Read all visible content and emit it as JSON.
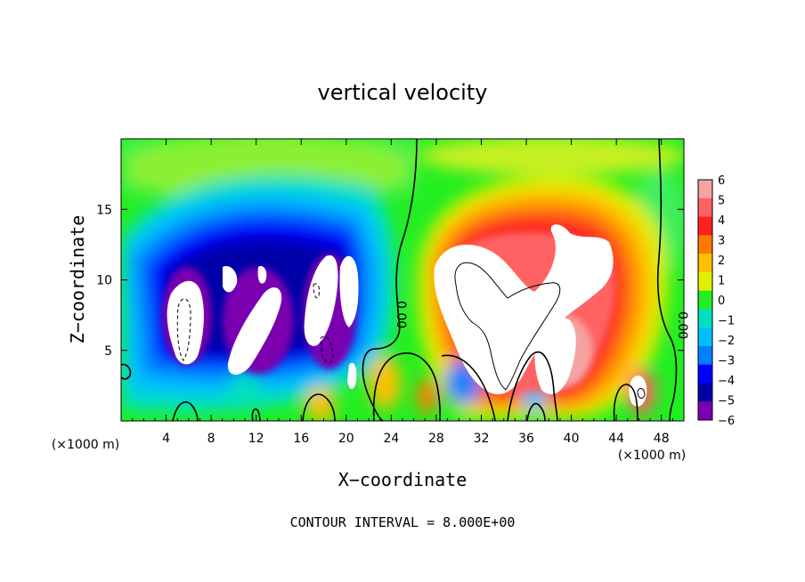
{
  "chart_data": {
    "type": "heatmap",
    "title": "vertical velocity",
    "xlabel": "X−coordinate",
    "ylabel": "Z−coordinate",
    "x_unit_left": "(×1000 m)",
    "x_unit_right": "(×1000 m)",
    "xlim": [
      0,
      50
    ],
    "ylim": [
      0,
      20
    ],
    "x_ticks": [
      4,
      8,
      12,
      16,
      20,
      24,
      28,
      32,
      36,
      40,
      44,
      48
    ],
    "y_ticks": [
      5,
      10,
      15
    ],
    "colorbar": {
      "range": [
        -6,
        6
      ],
      "labels": [
        "6",
        "5",
        "4",
        "3",
        "2",
        "1",
        "0",
        "−1",
        "−2",
        "−3",
        "−4",
        "−5",
        "−6"
      ],
      "colors": [
        "#f5a3a3",
        "#ff6262",
        "#ff2020",
        "#ff7a00",
        "#ffc000",
        "#e0f000",
        "#22ee22",
        "#00e0c0",
        "#00bfff",
        "#0080ff",
        "#0000ff",
        "#0000a8",
        "#7a00b0"
      ]
    },
    "contour_labels": [
      "0.00",
      "0.00"
    ],
    "contour_interval": "CONTOUR INTERVAL = 8.000E+00",
    "updraft_regions": [
      {
        "x_center": 37,
        "z_center": 9,
        "w_max": 6
      },
      {
        "x_center": 44,
        "z_center": 4,
        "w_max": 5
      },
      {
        "x_center": 23.5,
        "z_center": 1.5,
        "w_max": 3
      },
      {
        "x_center": 17.5,
        "z_center": 1.2,
        "w_max": 3
      },
      {
        "x_center": 46,
        "z_center": 2,
        "w_max": 6
      }
    ],
    "downdraft_regions": [
      {
        "x_center": 6,
        "z_center": 7,
        "w_min": -6
      },
      {
        "x_center": 11,
        "z_center": 8,
        "w_min": -6
      },
      {
        "x_center": 18,
        "z_center": 8,
        "w_min": -6
      },
      {
        "x_center": 12,
        "z_center": 11,
        "w_min": -5
      }
    ]
  }
}
